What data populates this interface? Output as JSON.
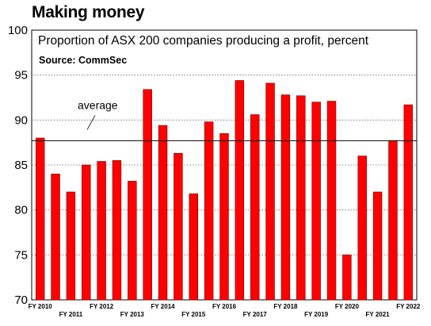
{
  "chart_data": {
    "type": "bar",
    "title": "Making money",
    "subtitle": "Proportion of ASX 200 companies producing a profit, percent",
    "source": "Source: CommSec",
    "ylim": [
      70,
      100
    ],
    "yticks": [
      70,
      75,
      80,
      85,
      90,
      95,
      100
    ],
    "values": [
      88.0,
      84.0,
      82.0,
      85.0,
      85.4,
      85.5,
      83.2,
      93.4,
      89.4,
      86.3,
      81.8,
      89.8,
      88.5,
      94.4,
      90.6,
      94.1,
      92.8,
      92.7,
      92.0,
      92.1,
      75.0,
      86.0,
      82.0,
      87.7,
      91.7
    ],
    "xlabels": [
      {
        "label": "FY 2010",
        "index": 0,
        "row": 0
      },
      {
        "label": "FY 2011",
        "index": 2,
        "row": 1
      },
      {
        "label": "FY 2012",
        "index": 4,
        "row": 0
      },
      {
        "label": "FY 2013",
        "index": 6,
        "row": 1
      },
      {
        "label": "FY 2014",
        "index": 8,
        "row": 0
      },
      {
        "label": "FY 2015",
        "index": 10,
        "row": 1
      },
      {
        "label": "FY 2016",
        "index": 12,
        "row": 0
      },
      {
        "label": "FY 2017",
        "index": 14,
        "row": 1
      },
      {
        "label": "FY 2018",
        "index": 16,
        "row": 0
      },
      {
        "label": "FY 2019",
        "index": 18,
        "row": 1
      },
      {
        "label": "FY 2020",
        "index": 20,
        "row": 0
      },
      {
        "label": "FY 2021",
        "index": 22,
        "row": 1
      },
      {
        "label": "FY 2022",
        "index": 24,
        "row": 0
      }
    ],
    "average": 87.7,
    "average_label": "average",
    "grid": true,
    "bar_color": "#ff0000",
    "bar_border_color": "#7a0000"
  }
}
